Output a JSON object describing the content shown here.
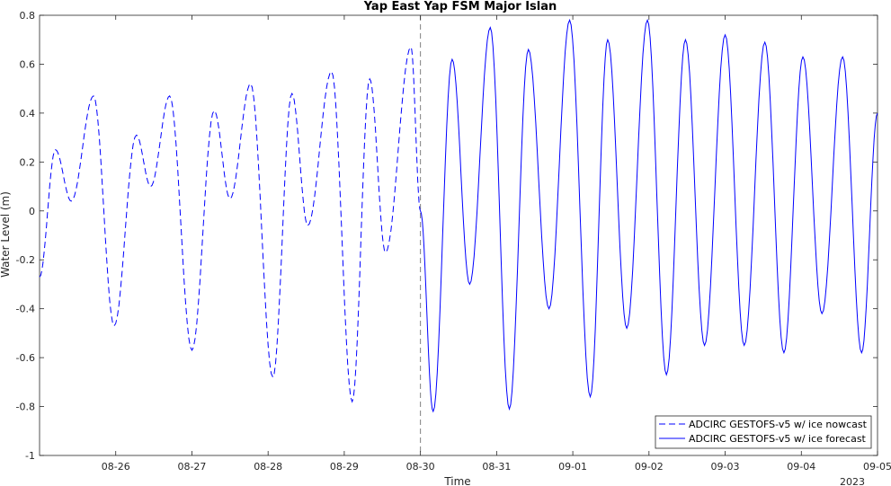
{
  "chart_data": {
    "type": "line",
    "title": "Yap East Yap FSM Major Islan",
    "xlabel": "Time",
    "ylabel": "Water Level (m)",
    "year_label": "2023",
    "ylim": [
      -1,
      0.8
    ],
    "xlim": [
      "2023-08-25",
      "2023-09-05"
    ],
    "x_tick_labels": [
      "08-26",
      "08-27",
      "08-28",
      "08-29",
      "08-30",
      "08-31",
      "09-01",
      "09-02",
      "09-03",
      "09-04",
      "09-05"
    ],
    "y_tick_labels": [
      "-1",
      "-0.8",
      "-0.6",
      "-0.4",
      "-0.2",
      "0",
      "0.2",
      "0.4",
      "0.6",
      "0.8"
    ],
    "y_ticks": [
      -1,
      -0.8,
      -0.6,
      -0.4,
      -0.2,
      0,
      0.2,
      0.4,
      0.6,
      0.8
    ],
    "nowcast_end": "2023-08-30",
    "line_color": "#0000ff",
    "divider_color": "#808080",
    "legend_position": "bottom-right",
    "series": [
      {
        "name": "ADCIRC GESTOFS-v5 w/ ice nowcast",
        "style": "dashed",
        "x": [
          "2023-08-25 00:00",
          "2023-08-25 05:00",
          "2023-08-25 10:00",
          "2023-08-25 17:00",
          "2023-08-25 23:30",
          "2023-08-26 06:30",
          "2023-08-26 11:00",
          "2023-08-26 17:00",
          "2023-08-27 00:00",
          "2023-08-27 07:00",
          "2023-08-27 12:00",
          "2023-08-27 18:30",
          "2023-08-28 01:30",
          "2023-08-28 07:30",
          "2023-08-28 12:30",
          "2023-08-28 20:00",
          "2023-08-29 02:30",
          "2023-08-29 08:00",
          "2023-08-29 13:00",
          "2023-08-29 21:00",
          "2023-08-30 00:00"
        ],
        "y": [
          -0.27,
          0.25,
          0.04,
          0.47,
          -0.47,
          0.31,
          0.1,
          0.47,
          -0.57,
          0.41,
          0.05,
          0.52,
          -0.68,
          0.48,
          -0.06,
          0.57,
          -0.78,
          0.54,
          -0.17,
          0.67,
          0.0
        ]
      },
      {
        "name": "ADCIRC GESTOFS-v5 w/ ice forecast",
        "style": "solid",
        "x": [
          "2023-08-30 00:00",
          "2023-08-30 04:00",
          "2023-08-30 10:00",
          "2023-08-30 15:30",
          "2023-08-30 22:00",
          "2023-08-31 04:00",
          "2023-08-31 10:00",
          "2023-08-31 16:30",
          "2023-08-31 23:00",
          "2023-09-01 05:30",
          "2023-09-01 11:00",
          "2023-09-01 17:00",
          "2023-09-01 23:30",
          "2023-09-02 05:30",
          "2023-09-02 11:30",
          "2023-09-02 17:30",
          "2023-09-03 00:00",
          "2023-09-03 06:00",
          "2023-09-03 12:30",
          "2023-09-03 18:30",
          "2023-09-04 00:30",
          "2023-09-04 06:30",
          "2023-09-04 13:00",
          "2023-09-04 19:00",
          "2023-09-05 00:00"
        ],
        "y": [
          0.0,
          -0.82,
          0.62,
          -0.3,
          0.75,
          -0.81,
          0.66,
          -0.4,
          0.78,
          -0.76,
          0.7,
          -0.48,
          0.78,
          -0.67,
          0.7,
          -0.55,
          0.72,
          -0.55,
          0.69,
          -0.58,
          0.63,
          -0.42,
          0.63,
          -0.58,
          0.4
        ]
      }
    ]
  }
}
